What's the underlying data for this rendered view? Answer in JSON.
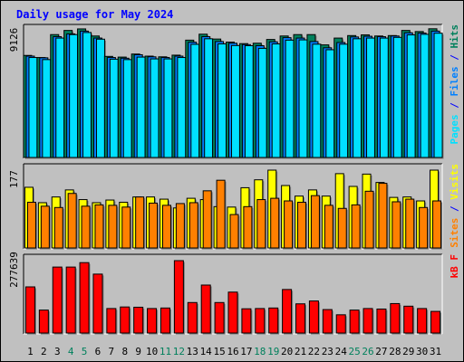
{
  "chart_data": {
    "type": "bar",
    "title": "Daily usage for May 2024",
    "days": [
      "1",
      "2",
      "3",
      "4",
      "5",
      "6",
      "7",
      "8",
      "9",
      "10",
      "11",
      "12",
      "13",
      "14",
      "15",
      "16",
      "17",
      "18",
      "19",
      "20",
      "21",
      "22",
      "23",
      "24",
      "25",
      "26",
      "27",
      "28",
      "29",
      "30",
      "31"
    ],
    "weekend_days": [
      "4",
      "5",
      "11",
      "12",
      "18",
      "19",
      "25",
      "26"
    ],
    "panels": [
      {
        "id": "requests",
        "max_label": "9126",
        "ymax": 9126,
        "side_label_parts": [
          "Pages",
          " / ",
          "Files",
          " / ",
          "Hits"
        ],
        "series": [
          {
            "name": "Hits",
            "color": "#00805c",
            "values": [
              7350,
              7200,
              8850,
              9150,
              9260,
              8750,
              7280,
              7230,
              7450,
              7300,
              7250,
              7370,
              8450,
              8880,
              8530,
              8310,
              8200,
              8230,
              8500,
              8750,
              8850,
              8850,
              8110,
              8600,
              8780,
              8830,
              8750,
              8780,
              9150,
              9070,
              9270
            ]
          },
          {
            "name": "Files",
            "color": "#0080ff",
            "values": [
              7300,
              7180,
              8700,
              8900,
              9100,
              8600,
              7200,
              7150,
              7400,
              7250,
              7200,
              7300,
              8300,
              8700,
              8350,
              8230,
              8130,
              8050,
              8330,
              8630,
              8600,
              8350,
              7900,
              8280,
              8680,
              8730,
              8700,
              8750,
              8980,
              8960,
              9100
            ]
          },
          {
            "name": "Pages",
            "color": "#00e0ff",
            "values": [
              7200,
              7050,
              8600,
              8850,
              9000,
              8520,
              7080,
              7050,
              7230,
              7100,
              7100,
              7200,
              8150,
              8550,
              8180,
              8060,
              8050,
              7860,
              8180,
              8450,
              8470,
              8160,
              7760,
              8160,
              8550,
              8600,
              8600,
              8650,
              8830,
              8870,
              8950
            ]
          }
        ]
      },
      {
        "id": "visits",
        "max_label": "177",
        "ymax": 177,
        "side_label_parts": [
          "Sites",
          " / ",
          "Visits"
        ],
        "series": [
          {
            "name": "Visits",
            "color": "#ffff00",
            "values": [
              138,
              103,
              116,
              132,
              110,
              103,
              109,
              104,
              116,
              116,
              111,
              91,
              113,
              110,
              94,
              93,
              137,
              155,
              177,
              142,
              118,
              132,
              118,
              169,
              140,
              168,
              149,
              115,
              116,
              107,
              177
            ]
          },
          {
            "name": "Sites",
            "color": "#ff8000",
            "values": [
              104,
              95,
              92,
              124,
              95,
              98,
              97,
              93,
              116,
              102,
              97,
              101,
              103,
              130,
              154,
              76,
              94,
              110,
              113,
              107,
              104,
              119,
              97,
              90,
              98,
              129,
              147,
              105,
              111,
              92,
              107
            ]
          }
        ]
      },
      {
        "id": "volume",
        "max_label": "277639",
        "ymax": 277639,
        "side_label_parts": [
          "kB F"
        ],
        "series": [
          {
            "name": "kB F",
            "color": "#ff0000",
            "values": [
              177000,
              88000,
              253000,
              253000,
              270000,
              226000,
              94000,
              100000,
              99000,
              94000,
              96000,
              277639,
              117000,
              184000,
              117000,
              157000,
              93000,
              94000,
              96000,
              167000,
              112000,
              123000,
              90000,
              70000,
              88000,
              94000,
              92000,
              113000,
              103000,
              94000,
              83000
            ]
          }
        ]
      }
    ]
  }
}
